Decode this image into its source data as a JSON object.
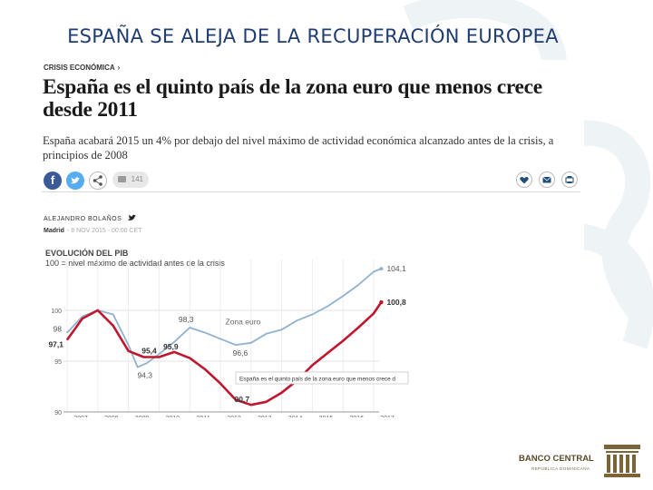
{
  "slide": {
    "title": "ESPAÑA SE ALEJA DE LA RECUPERACIÓN EUROPEA"
  },
  "article": {
    "section": "CRISIS ECONÓMICA",
    "section_sep": "›",
    "headline": "España es el quinto país de la zona euro que menos crece desde 2011",
    "subhead": "España acabará 2015 un 4% por debajo del nivel máximo de actividad económica alcanzado antes de la crisis, a principios de 2008",
    "author": "ALEJANDRO BOLAÑOS",
    "location": "Madrid",
    "date": "- 8 NOV 2015 - 00:00 CET",
    "comments_count": "141",
    "share_icons": [
      "facebook-icon",
      "twitter-icon",
      "share-icon"
    ],
    "action_icons": [
      "heart-icon",
      "mail-icon",
      "print-icon"
    ]
  },
  "chart_data": {
    "type": "line",
    "title": "EVOLUCIÓN DEL PIB",
    "subtitle": "100 = nivel máximo de actividad antes de la crisis",
    "x": [
      "2007",
      "2008",
      "2009",
      "2010",
      "2011",
      "2012",
      "2013",
      "2014",
      "2015",
      "2016",
      "2017"
    ],
    "ylim": [
      90,
      105
    ],
    "yticks": [
      90,
      95,
      100
    ],
    "series": [
      {
        "name": "Zona euro",
        "color": "#8fb2d0",
        "points": [
          [
            2007.0,
            97.8
          ],
          [
            2007.5,
            99.4
          ],
          [
            2008.0,
            100.0
          ],
          [
            2008.5,
            99.6
          ],
          [
            2009.0,
            96.6
          ],
          [
            2009.3,
            94.4
          ],
          [
            2009.6,
            94.8
          ],
          [
            2010.0,
            95.7
          ],
          [
            2010.5,
            96.9
          ],
          [
            2011.0,
            98.3
          ],
          [
            2011.5,
            97.8
          ],
          [
            2012.0,
            97.2
          ],
          [
            2012.5,
            96.6
          ],
          [
            2013.0,
            96.8
          ],
          [
            2013.5,
            97.7
          ],
          [
            2014.0,
            98.1
          ],
          [
            2014.5,
            99.0
          ],
          [
            2015.0,
            99.6
          ],
          [
            2015.5,
            100.4
          ],
          [
            2016.0,
            101.4
          ],
          [
            2016.5,
            102.5
          ],
          [
            2017.0,
            103.8
          ],
          [
            2017.25,
            104.1
          ]
        ]
      },
      {
        "name": "España",
        "color": "#c0172e",
        "points": [
          [
            2007.0,
            97.1
          ],
          [
            2007.5,
            99.2
          ],
          [
            2008.0,
            100.0
          ],
          [
            2008.5,
            98.5
          ],
          [
            2009.0,
            96.0
          ],
          [
            2009.5,
            95.4
          ],
          [
            2010.0,
            95.4
          ],
          [
            2010.5,
            95.9
          ],
          [
            2011.0,
            95.3
          ],
          [
            2011.5,
            94.2
          ],
          [
            2012.0,
            92.8
          ],
          [
            2012.5,
            91.2
          ],
          [
            2013.0,
            90.7
          ],
          [
            2013.5,
            91.0
          ],
          [
            2014.0,
            91.9
          ],
          [
            2014.5,
            93.1
          ],
          [
            2015.0,
            94.6
          ],
          [
            2015.5,
            95.8
          ],
          [
            2016.0,
            97.0
          ],
          [
            2016.5,
            98.3
          ],
          [
            2017.0,
            99.7
          ],
          [
            2017.25,
            100.8
          ]
        ]
      }
    ],
    "annotations": [
      "98",
      "97,1",
      "98,3",
      "Zona euro",
      "95,4",
      "95,9",
      "94,3",
      "96,6",
      "90,7",
      "104,1",
      "100,8"
    ],
    "tooltip": "España es el quinto país de la zona euro que menos crece d"
  },
  "logo": {
    "name": "BANCO CENTRAL",
    "sub": "REPÚBLICA DOMINICANA"
  }
}
